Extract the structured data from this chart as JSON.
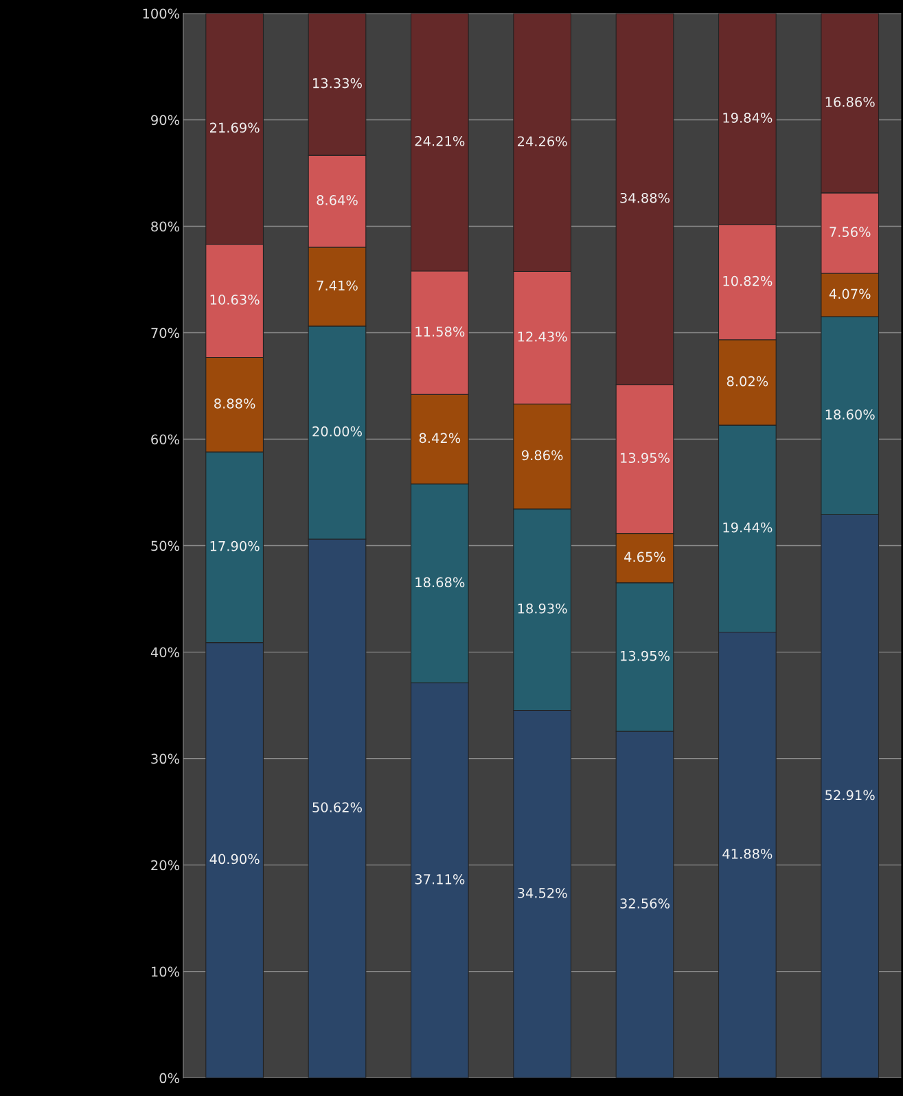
{
  "chart_data": {
    "type": "bar",
    "stacked": true,
    "categories": [
      null,
      null,
      null,
      null,
      null,
      null,
      null
    ],
    "series": [
      {
        "color": "#2b4669",
        "values": [
          40.9,
          50.62,
          37.11,
          34.52,
          32.56,
          41.88,
          52.91
        ],
        "value_labels": [
          "40.90%",
          "50.62%",
          "37.11%",
          "34.52%",
          "32.56%",
          "41.88%",
          "52.91%"
        ]
      },
      {
        "color": "#255e6e",
        "values": [
          17.9,
          20.0,
          18.68,
          18.93,
          13.95,
          19.44,
          18.6
        ],
        "value_labels": [
          "17.90%",
          "20.00%",
          "18.68%",
          "18.93%",
          "13.95%",
          "19.44%",
          "18.60%"
        ]
      },
      {
        "color": "#9c4a0b",
        "values": [
          8.88,
          7.41,
          8.42,
          9.86,
          4.65,
          8.02,
          4.07
        ],
        "value_labels": [
          "8.88%",
          "7.41%",
          "8.42%",
          "9.86%",
          "4.65%",
          "8.02%",
          "4.07%"
        ]
      },
      {
        "color": "#cf5656",
        "values": [
          10.63,
          8.64,
          11.58,
          12.43,
          13.95,
          10.82,
          7.56
        ],
        "value_labels": [
          "10.63%",
          "8.64%",
          "11.58%",
          "12.43%",
          "13.95%",
          "10.82%",
          "7.56%"
        ]
      },
      {
        "color": "#652929",
        "values": [
          21.69,
          13.33,
          24.21,
          24.26,
          34.88,
          19.84,
          16.86
        ],
        "value_labels": [
          "21.69%",
          "13.33%",
          "24.21%",
          "24.26%",
          "34.88%",
          "19.84%",
          "16.86%"
        ]
      }
    ],
    "ylim": [
      0,
      100
    ],
    "yticks": [
      {
        "value": 0,
        "label": "0%"
      },
      {
        "value": 10,
        "label": "10%"
      },
      {
        "value": 20,
        "label": "20%"
      },
      {
        "value": 30,
        "label": "30%"
      },
      {
        "value": 40,
        "label": "40%"
      },
      {
        "value": 50,
        "label": "50%"
      },
      {
        "value": 60,
        "label": "60%"
      },
      {
        "value": 70,
        "label": "70%"
      },
      {
        "value": 80,
        "label": "80%"
      },
      {
        "value": 90,
        "label": "90%"
      },
      {
        "value": 100,
        "label": "100%"
      }
    ],
    "grid": "y",
    "tick_labels": "y"
  }
}
